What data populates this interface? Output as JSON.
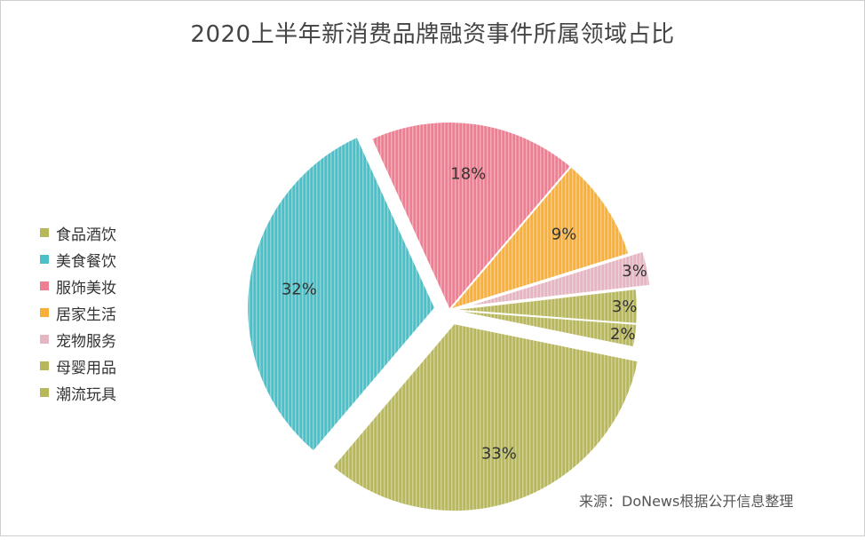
{
  "title": "2020上半年新消费品牌融资事件所属领域占比",
  "source": "来源：DoNews根据公开信息整理",
  "chart_data": {
    "type": "pie",
    "title": "2020上半年新消费品牌融资事件所属领域占比",
    "legend_position": "left",
    "slices": [
      {
        "name": "食品酒饮",
        "value": 33,
        "label": "33%",
        "color": "#b8b85a",
        "exploded": true
      },
      {
        "name": "美食餐饮",
        "value": 32,
        "label": "32%",
        "color": "#4cc0c8",
        "exploded": true
      },
      {
        "name": "服饰美妆",
        "value": 18,
        "label": "18%",
        "color": "#ef7e92",
        "exploded": false
      },
      {
        "name": "居家生活",
        "value": 9,
        "label": "9%",
        "color": "#f9b03a",
        "exploded": false
      },
      {
        "name": "宠物服务",
        "value": 3,
        "label": "3%",
        "color": "#e7b5c2",
        "exploded": true
      },
      {
        "name": "母婴用品",
        "value": 3,
        "label": "3%",
        "color": "#b8b85a",
        "exploded": false
      },
      {
        "name": "潮流玩具",
        "value": 2,
        "label": "2%",
        "color": "#b8b85a",
        "exploded": false
      }
    ]
  }
}
